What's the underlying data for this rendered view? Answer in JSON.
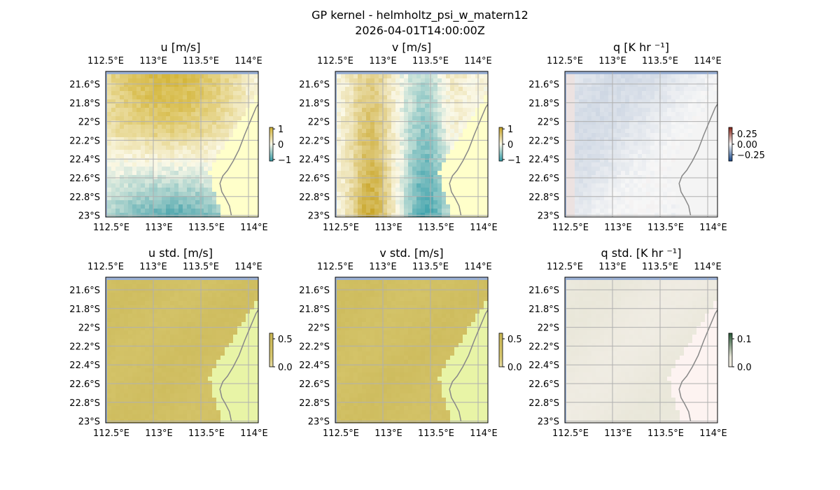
{
  "figure": {
    "title_line1": "GP kernel - helmholtz_psi_w_matern12",
    "title_line2": "2026-04-01T14:00:00Z"
  },
  "chart_data": [
    {
      "type": "heatmap",
      "title": "u [m/s]",
      "lon_ticks": [
        "112.5°E",
        "113°E",
        "113.5°E",
        "114°E"
      ],
      "lat_ticks": [
        "21.6°S",
        "21.8°S",
        "22°S",
        "22.2°S",
        "22.4°S",
        "22.6°S",
        "22.8°S",
        "23°S"
      ],
      "colorbar": {
        "ticks": [
          "1",
          "0",
          "−1"
        ],
        "values": [
          1,
          0,
          -1
        ],
        "range": [
          -1.1,
          1.1
        ]
      },
      "grid": true,
      "colors": {
        "high": "#d4b63c",
        "mid": "#fbf9e8",
        "low": "#3e9ea8",
        "land": "#ffffca",
        "ocean_edge": "#9ab0d4"
      }
    },
    {
      "type": "heatmap",
      "title": "v [m/s]",
      "lon_ticks": [
        "112.5°E",
        "113°E",
        "113.5°E",
        "114°E"
      ],
      "lat_ticks": [
        "21.6°S",
        "21.8°S",
        "22°S",
        "22.2°S",
        "22.4°S",
        "22.6°S",
        "22.8°S",
        "23°S"
      ],
      "colorbar": {
        "ticks": [
          "1",
          "0",
          "−1"
        ],
        "values": [
          1,
          0,
          -1
        ],
        "range": [
          -1.1,
          1.1
        ]
      },
      "grid": true,
      "colors": {
        "high": "#c9a62a",
        "mid": "#fbf9e8",
        "low": "#3aa0ab",
        "land": "#ffffca",
        "ocean_edge": "#9ab0d4"
      }
    },
    {
      "type": "heatmap",
      "title": "q [K hr ⁻¹]",
      "lon_ticks": [
        "112.5°E",
        "113°E",
        "113.5°E",
        "114°E"
      ],
      "lat_ticks": [
        "21.6°S",
        "21.8°S",
        "22°S",
        "22.2°S",
        "22.4°S",
        "22.6°S",
        "22.8°S",
        "23°S"
      ],
      "colorbar": {
        "ticks": [
          "0.25",
          "0.00",
          "−0.25"
        ],
        "values": [
          0.25,
          0.0,
          -0.25
        ],
        "range": [
          -0.4,
          0.4
        ]
      },
      "grid": true,
      "colors": {
        "high": "#8b2a1e",
        "mid": "#f7f7f7",
        "low": "#1f4e8f",
        "land": "#f4f4f4",
        "ocean_edge": "#9ab0d4"
      }
    },
    {
      "type": "heatmap",
      "title": "u std. [m/s]",
      "lon_ticks": [
        "112.5°E",
        "113°E",
        "113.5°E",
        "114°E"
      ],
      "lat_ticks": [
        "21.6°S",
        "21.8°S",
        "22°S",
        "22.2°S",
        "22.4°S",
        "22.6°S",
        "22.8°S",
        "23°S"
      ],
      "colorbar": {
        "ticks": [
          "0.5",
          "0.0"
        ],
        "values": [
          0.5,
          0.0
        ],
        "range": [
          0.0,
          0.6
        ]
      },
      "grid": true,
      "colors": {
        "high": "#c8b553",
        "mid": "#d8c870",
        "low": "#fbf7e6",
        "land": "#e8f4a6",
        "ocean_edge": "#9ab0d4"
      }
    },
    {
      "type": "heatmap",
      "title": "v std. [m/s]",
      "lon_ticks": [
        "112.5°E",
        "113°E",
        "113.5°E",
        "114°E"
      ],
      "lat_ticks": [
        "21.6°S",
        "21.8°S",
        "22°S",
        "22.2°S",
        "22.4°S",
        "22.6°S",
        "22.8°S",
        "23°S"
      ],
      "colorbar": {
        "ticks": [
          "0.5",
          "0.0"
        ],
        "values": [
          0.5,
          0.0
        ],
        "range": [
          0.0,
          0.6
        ]
      },
      "grid": true,
      "colors": {
        "high": "#c8b553",
        "mid": "#d8c870",
        "low": "#fbf7e6",
        "land": "#e8f4a6",
        "ocean_edge": "#9ab0d4"
      }
    },
    {
      "type": "heatmap",
      "title": "q std. [K hr ⁻¹]",
      "lon_ticks": [
        "112.5°E",
        "113°E",
        "113.5°E",
        "114°E"
      ],
      "lat_ticks": [
        "21.6°S",
        "21.8°S",
        "22°S",
        "22.2°S",
        "22.4°S",
        "22.6°S",
        "22.8°S",
        "23°S"
      ],
      "colorbar": {
        "ticks": [
          "0.1",
          "0.0"
        ],
        "values": [
          0.1,
          0.0
        ],
        "range": [
          0.0,
          0.12
        ]
      },
      "grid": true,
      "colors": {
        "high": "#2b5a3a",
        "mid": "#e8e6d8",
        "low": "#f6f1ec",
        "land": "#fdf3f1",
        "ocean_edge": "#9ab0d4"
      }
    }
  ]
}
